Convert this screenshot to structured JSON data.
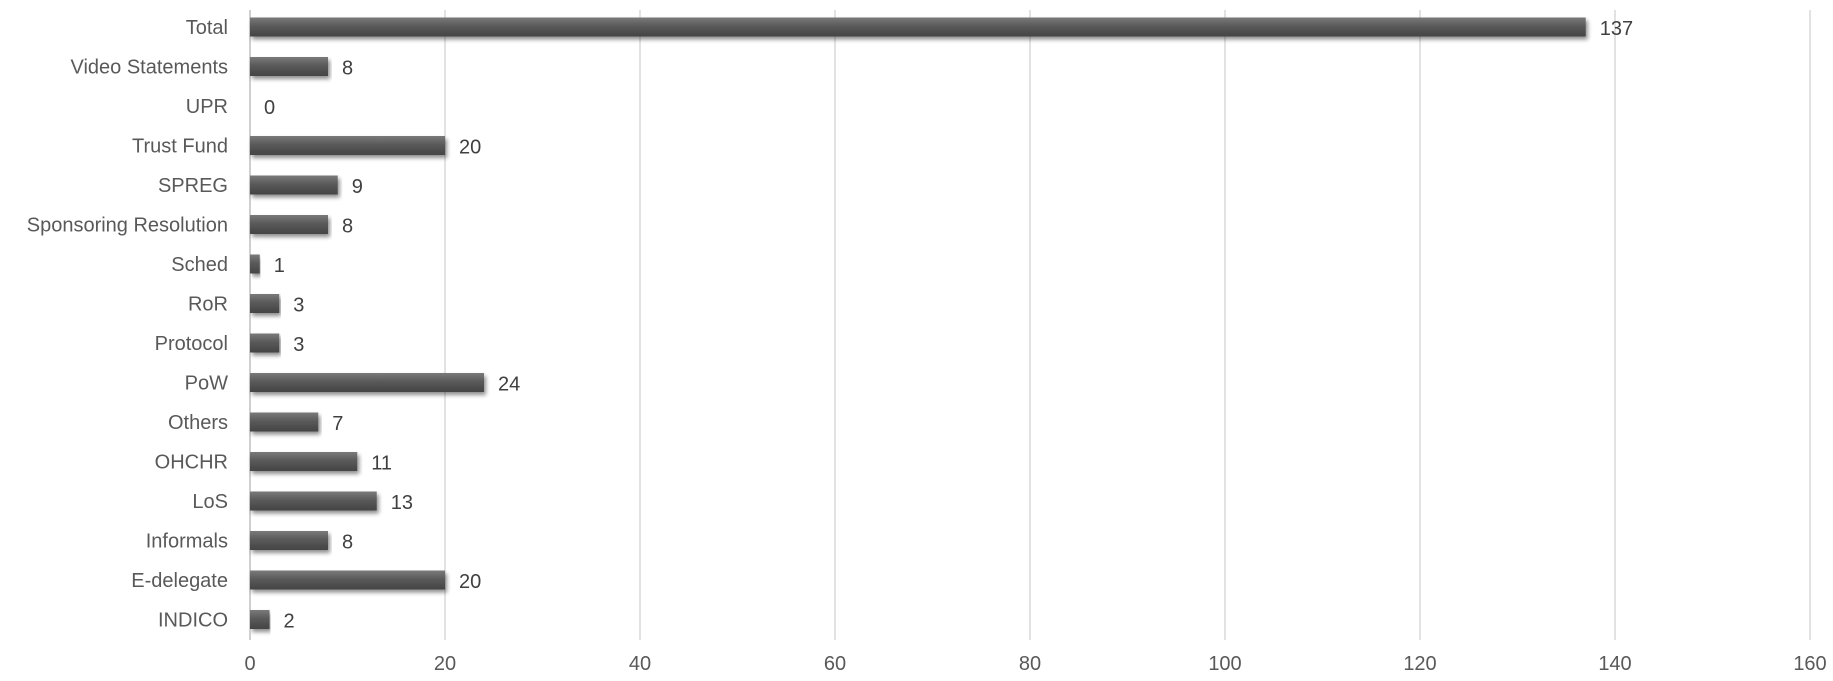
{
  "chart_data": {
    "type": "bar",
    "orientation": "horizontal",
    "title": "",
    "xlabel": "",
    "ylabel": "",
    "categories": [
      "Total",
      "Video Statements",
      "UPR",
      "Trust Fund",
      "SPREG",
      "Sponsoring Resolution",
      "Sched",
      "RoR",
      "Protocol",
      "PoW",
      "Others",
      "OHCHR",
      "LoS",
      "Informals",
      "E-delegate",
      "INDICO"
    ],
    "values": [
      137,
      8,
      0,
      20,
      9,
      8,
      1,
      3,
      3,
      24,
      7,
      11,
      13,
      8,
      20,
      2
    ],
    "xlim": [
      0,
      160
    ],
    "x_ticks": [
      0,
      20,
      40,
      60,
      80,
      100,
      120,
      140,
      160
    ],
    "grid": "vertical",
    "legend": "none",
    "data_labels": true,
    "colors": {
      "bar": "#595959",
      "bar_shadow": "#9a9a9a",
      "gridline": "#d9d9d9",
      "text": "#595959"
    }
  }
}
